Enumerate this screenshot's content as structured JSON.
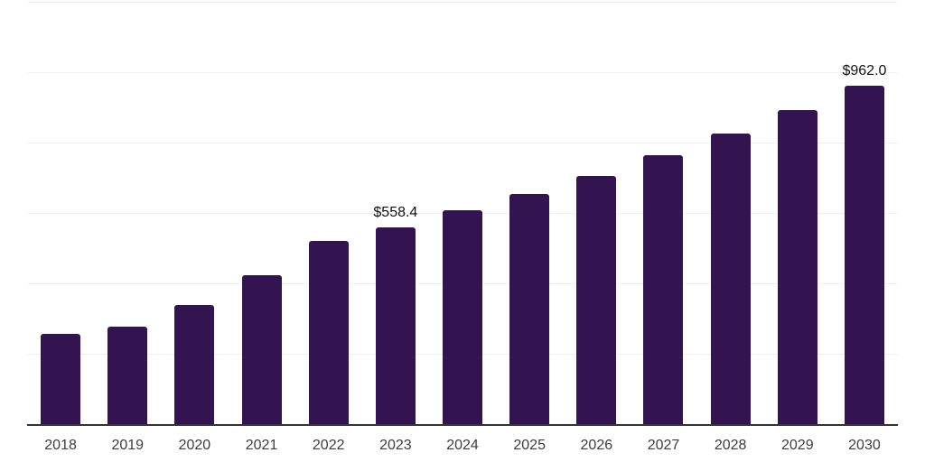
{
  "chart_data": {
    "type": "bar",
    "title": "",
    "xlabel": "",
    "ylabel": "",
    "categories": [
      "2018",
      "2019",
      "2020",
      "2021",
      "2022",
      "2023",
      "2024",
      "2025",
      "2026",
      "2027",
      "2028",
      "2029",
      "2030"
    ],
    "values": [
      257,
      277,
      339,
      423,
      520,
      558.4,
      607,
      655,
      706,
      763,
      826,
      893,
      962
    ],
    "data_labels": [
      "",
      "",
      "",
      "",
      "",
      "$558.4",
      "",
      "",
      "",
      "",
      "",
      "",
      "$962.0"
    ],
    "ylim": [
      0,
      1200
    ],
    "gridline_step": 200,
    "grid": true,
    "legend": "none",
    "colors": {
      "bar": "#341450",
      "gridline": "#f0f0f0",
      "axis_line": "#333333",
      "tick_label": "#3d3d3d",
      "data_label": "#111111",
      "background": "#ffffff"
    }
  }
}
